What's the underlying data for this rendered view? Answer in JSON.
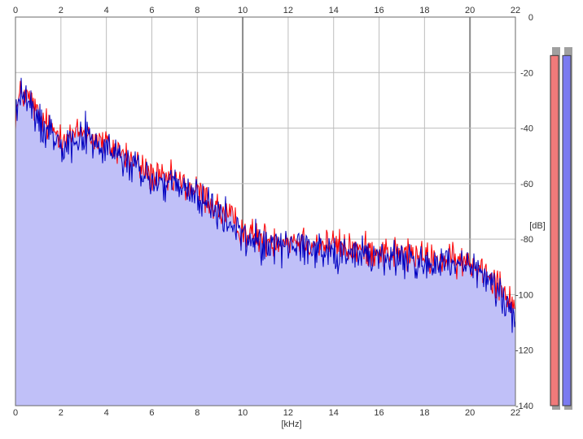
{
  "spectrum": {
    "x_unit": "[kHz]",
    "y_unit": "[dB]",
    "colors": {
      "background": "#ffffff",
      "fill": "#c0c0f8",
      "left_channel": "#ff0000",
      "right_channel": "#0000c0",
      "grid": "#bdbdbd",
      "major_grid": "#8a8a8a",
      "meter_left": "#f07a7a",
      "meter_right": "#7a7af0"
    }
  },
  "chart_data": {
    "type": "line",
    "title": "",
    "xlabel": "[kHz]",
    "ylabel": "[dB]",
    "xlim": [
      0,
      22
    ],
    "ylim": [
      -140,
      0
    ],
    "x_ticks": [
      "0",
      "2",
      "4",
      "6",
      "8",
      "10",
      "12",
      "14",
      "16",
      "18",
      "20",
      "22"
    ],
    "y_ticks": [
      "0",
      "-20",
      "-40",
      "-60",
      "-80",
      "-100",
      "-120",
      "-140"
    ],
    "grid": true,
    "x": [
      0.0,
      0.25,
      0.5,
      0.75,
      1.0,
      1.5,
      2.0,
      2.5,
      3.0,
      3.5,
      4.0,
      4.5,
      5.0,
      5.5,
      6.0,
      6.5,
      7.0,
      7.5,
      8.0,
      8.5,
      9.0,
      9.5,
      10.0,
      10.5,
      11.0,
      11.5,
      12.0,
      12.5,
      13.0,
      13.5,
      14.0,
      14.5,
      15.0,
      15.5,
      16.0,
      16.5,
      17.0,
      17.5,
      18.0,
      18.5,
      19.0,
      19.5,
      20.0,
      20.5,
      21.0,
      21.5,
      22.0
    ],
    "series": [
      {
        "values": [
          -35,
          -27,
          -29,
          -31,
          -36,
          -40,
          -42,
          -43,
          -41,
          -44,
          -46,
          -48,
          -51,
          -54,
          -57,
          -59,
          -59,
          -61,
          -63,
          -66,
          -70,
          -73,
          -77,
          -79,
          -80,
          -80,
          -80,
          -80,
          -81,
          -82,
          -82,
          -83,
          -84,
          -84,
          -84,
          -85,
          -85,
          -86,
          -87,
          -87,
          -88,
          -88,
          -89,
          -90,
          -93,
          -98,
          -104
        ]
      },
      {
        "values": [
          -36,
          -26,
          -31,
          -34,
          -38,
          -41,
          -44,
          -45,
          -42,
          -46,
          -48,
          -50,
          -53,
          -56,
          -59,
          -60,
          -61,
          -63,
          -64,
          -68,
          -72,
          -75,
          -79,
          -81,
          -82,
          -82,
          -82,
          -82,
          -83,
          -84,
          -84,
          -85,
          -86,
          -86,
          -86,
          -87,
          -87,
          -88,
          -89,
          -89,
          -90,
          -90,
          -91,
          -93,
          -96,
          -100,
          -110
        ]
      }
    ],
    "meters": {
      "left_level": 0.97,
      "right_level": 0.97
    }
  }
}
